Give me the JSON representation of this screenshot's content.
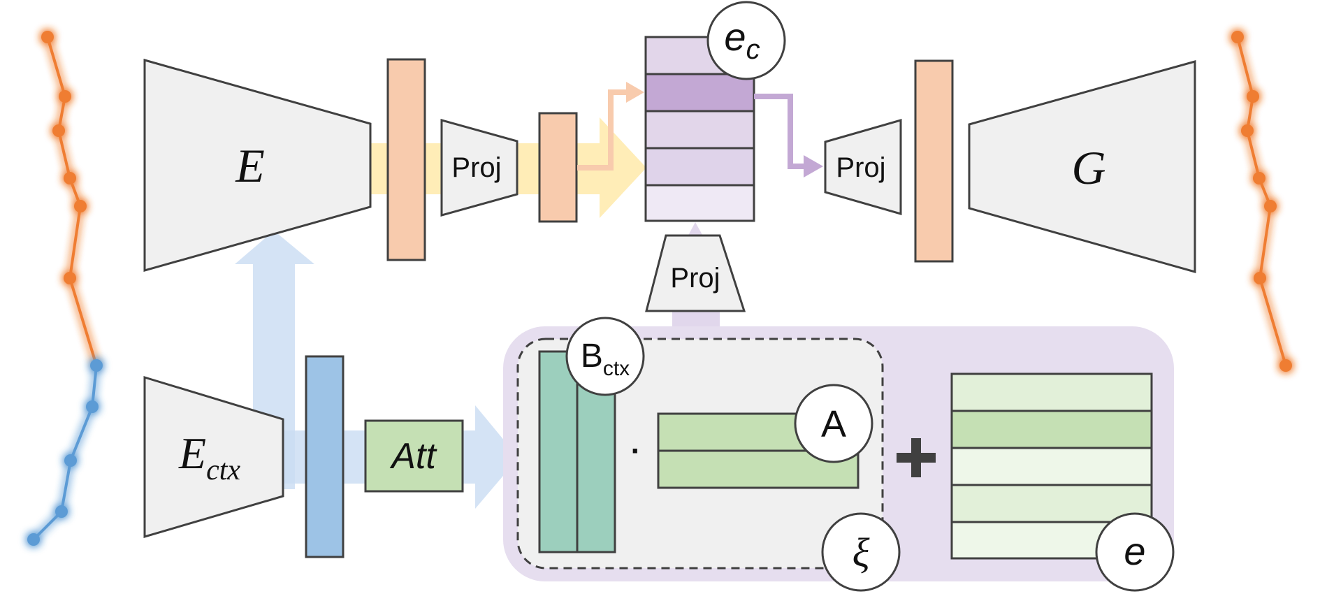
{
  "labels": {
    "encoder": "E",
    "context_encoder_main": "E",
    "context_encoder_sub": "ctx",
    "generator": "G",
    "proj_top": "Proj",
    "proj_mid": "Proj",
    "proj_right": "Proj",
    "attention": "Att",
    "code_main": "e",
    "code_sub": "c",
    "basis_main": "B",
    "basis_sub": "ctx",
    "coefficients": "A",
    "noise": "ξ",
    "codebook": "e",
    "dot_operator": "·",
    "plus_operator": "+"
  },
  "colors": {
    "block_fill": "#f0f0f0",
    "block_stroke": "#404040",
    "feature_orange": "#f8cbad",
    "feature_blue": "#9dc3e6",
    "attention_green": "#c5e0b4",
    "basis_teal": "#9ccfbd",
    "code_purple": "#c3a8d4",
    "code_purple_light": "#e2d6ea",
    "codebook_green": "#c5e0b4",
    "codebook_green_light": "#e2f0d9",
    "panel_purple": "#e6deef",
    "flow_yellow": "#ffe699",
    "flow_blue": "#c9dcf2",
    "traj_orange": "#ef7d31",
    "traj_blue": "#5b9bd5"
  }
}
